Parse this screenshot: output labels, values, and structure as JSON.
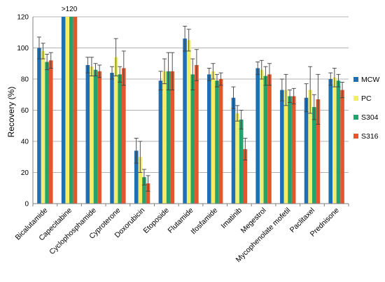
{
  "chart_data": {
    "type": "bar",
    "title": "",
    "xlabel": "",
    "ylabel": "Recovery (%)",
    "ylim": [
      0,
      120
    ],
    "yticks": [
      0,
      20,
      40,
      60,
      80,
      100,
      120
    ],
    "grid": true,
    "legend_position": "right",
    "categories": [
      "Bicalutamide",
      "Capecitabine",
      "Cyclophosphamide",
      "Cyproterone",
      "Doxorubicin",
      "Etoposide",
      "Flutamide",
      "Ifosfamide",
      "Imatinib",
      "Megestrol",
      "Mycophenolate mofetil",
      "Paclitaxel",
      "Prednisone"
    ],
    "series": [
      {
        "name": "MCW",
        "color": "#1f6fb5",
        "values": [
          100,
          120,
          89,
          84,
          34,
          79,
          106,
          83,
          68,
          87,
          73,
          68,
          80
        ],
        "errors": [
          7,
          0,
          5,
          4,
          8,
          6,
          8,
          4,
          7,
          4,
          7,
          9,
          4
        ]
      },
      {
        "name": "PC",
        "color": "#f2ee6a",
        "values": [
          98,
          120,
          88,
          94,
          30,
          85,
          105,
          85,
          58,
          86,
          73,
          73,
          81
        ],
        "errors": [
          5,
          0,
          6,
          12,
          10,
          8,
          7,
          5,
          5,
          6,
          10,
          15,
          6
        ]
      },
      {
        "name": "S304",
        "color": "#24a36f",
        "values": [
          91,
          120,
          86,
          83,
          17,
          85,
          83,
          79,
          54,
          82,
          69,
          62,
          79
        ],
        "errors": [
          5,
          0,
          4,
          5,
          5,
          12,
          10,
          4,
          6,
          6,
          4,
          8,
          4
        ]
      },
      {
        "name": "S316",
        "color": "#e4562d",
        "values": [
          92,
          120,
          85,
          87,
          13,
          85,
          89,
          80,
          35,
          83,
          69,
          67,
          73
        ],
        "errors": [
          5,
          0,
          4,
          11,
          5,
          12,
          10,
          4,
          7,
          7,
          5,
          16,
          5
        ]
      }
    ],
    "annotations": [
      {
        "category": "Capecitabine",
        "text": ">120"
      }
    ]
  }
}
